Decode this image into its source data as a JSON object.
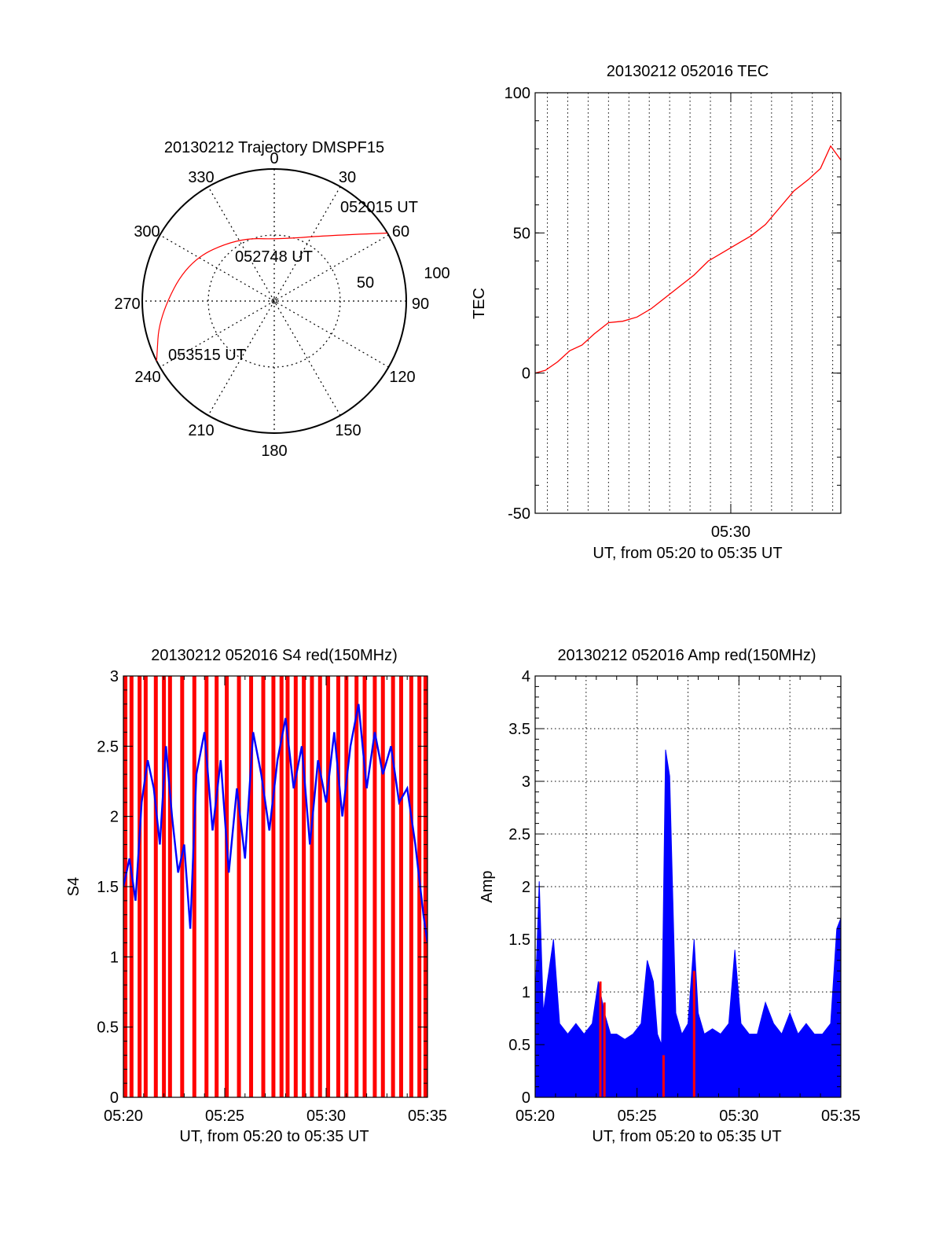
{
  "chart_data": [
    {
      "type": "polar",
      "title": "20130212 Trajectory DMSPF15",
      "angle_labels": [
        "0",
        "30",
        "60",
        "90",
        "120",
        "150",
        "180",
        "210",
        "240",
        "270",
        "300",
        "330"
      ],
      "radius_labels": [
        "50",
        "100"
      ],
      "rlim": [
        0,
        100
      ],
      "grid": true,
      "series": [
        {
          "color": "#ff0000",
          "points": [
            {
              "az": 59,
              "r": 100
            },
            {
              "az": 40,
              "r": 65
            },
            {
              "az": 5,
              "r": 47
            },
            {
              "az": 330,
              "r": 55
            },
            {
              "az": 295,
              "r": 72
            },
            {
              "az": 262,
              "r": 88
            },
            {
              "az": 243,
              "r": 100
            }
          ]
        }
      ],
      "annotations": [
        {
          "text": "052015 UT",
          "az": 59,
          "r": 100
        },
        {
          "text": "052748 UT",
          "az": 5,
          "r": 47
        },
        {
          "text": "053515 UT",
          "az": 243,
          "r": 100
        }
      ]
    },
    {
      "type": "line",
      "title": "20130212 052016 TEC",
      "xlabel": "UT, from 05:20 to 05:35 UT",
      "ylabel": "TEC",
      "xlim": [
        20.4,
        35.4
      ],
      "ylim": [
        -50,
        100
      ],
      "xticks": [
        "05:30"
      ],
      "yticks": [
        "-50",
        "0",
        "50",
        "100"
      ],
      "grid": true,
      "series": [
        {
          "color": "#ff0000",
          "x": [
            20.4,
            20.9,
            21.5,
            22.1,
            22.7,
            23.3,
            24.0,
            24.7,
            25.4,
            26.1,
            26.8,
            27.5,
            28.2,
            28.9,
            29.6,
            30.3,
            31.0,
            31.7,
            32.4,
            33.1,
            33.8,
            34.4,
            34.9,
            35.4
          ],
          "y": [
            0,
            1,
            4,
            8,
            10,
            14,
            18,
            18.5,
            20,
            23,
            27,
            31,
            35,
            40,
            43,
            46,
            49,
            53,
            59,
            65,
            69,
            73,
            81,
            76
          ]
        }
      ]
    },
    {
      "type": "line",
      "title": "20130212 052016 S4 red(150MHz)",
      "xlabel": "UT, from 05:20 to 05:35 UT",
      "ylabel": "S4",
      "xlim": [
        20,
        35
      ],
      "ylim": [
        0,
        3
      ],
      "xticks": [
        "05:20",
        "05:25",
        "05:30",
        "05:35"
      ],
      "yticks": [
        "0",
        "0.5",
        "1",
        "1.5",
        "2",
        "2.5",
        "3"
      ],
      "series": [
        {
          "color": "#0000ff",
          "x": [
            20.0,
            20.3,
            20.6,
            20.9,
            21.2,
            21.5,
            21.8,
            22.1,
            22.4,
            22.7,
            23.0,
            23.3,
            23.6,
            24.0,
            24.4,
            24.8,
            25.2,
            25.6,
            26.0,
            26.4,
            26.8,
            27.2,
            27.6,
            28.0,
            28.4,
            28.8,
            29.2,
            29.6,
            30.0,
            30.4,
            30.8,
            31.2,
            31.6,
            32.0,
            32.4,
            32.8,
            33.2,
            33.6,
            34.0,
            34.4,
            34.8,
            35.0
          ],
          "y": [
            1.5,
            1.7,
            1.4,
            2.1,
            2.4,
            2.2,
            1.8,
            2.5,
            2.0,
            1.6,
            1.8,
            1.2,
            2.3,
            2.6,
            1.9,
            2.4,
            1.6,
            2.2,
            1.7,
            2.6,
            2.3,
            1.9,
            2.4,
            2.7,
            2.2,
            2.5,
            1.8,
            2.4,
            2.1,
            2.6,
            2.0,
            2.5,
            2.8,
            2.2,
            2.6,
            2.3,
            2.5,
            2.1,
            2.2,
            1.8,
            1.3,
            1.1
          ]
        },
        {
          "color": "#ff0000",
          "style": "spikes",
          "x": [
            20.1,
            20.4,
            20.8,
            21.1,
            21.6,
            22.0,
            22.3,
            22.9,
            23.5,
            24.1,
            24.6,
            25.1,
            25.7,
            26.3,
            26.9,
            27.4,
            27.8,
            28.1,
            28.5,
            28.9,
            29.3,
            29.7,
            30.1,
            30.6,
            31.0,
            31.5,
            31.9,
            32.4,
            32.8,
            33.3,
            33.7,
            34.2,
            34.6,
            34.9
          ],
          "y": [
            3,
            3,
            3,
            3,
            3,
            3,
            3,
            3,
            3,
            3,
            3,
            3,
            3,
            3,
            3,
            3,
            3,
            3,
            3,
            3,
            3,
            3,
            3,
            3,
            3,
            3,
            3,
            3,
            3,
            3,
            3,
            3,
            3,
            3
          ]
        }
      ]
    },
    {
      "type": "line",
      "title": "20130212 052016 Amp red(150MHz)",
      "xlabel": "UT, from 05:20 to 05:35 UT",
      "ylabel": "Amp",
      "xlim": [
        20,
        35
      ],
      "ylim": [
        0,
        4
      ],
      "xticks": [
        "05:20",
        "05:25",
        "05:30",
        "05:35"
      ],
      "yticks": [
        "0",
        "0.5",
        "1",
        "1.5",
        "2",
        "2.5",
        "3",
        "3.5",
        "4"
      ],
      "grid": true,
      "series": [
        {
          "color": "#0000ff",
          "x": [
            20.0,
            20.2,
            20.4,
            20.6,
            20.9,
            21.2,
            21.6,
            22.0,
            22.4,
            22.8,
            23.1,
            23.4,
            23.7,
            24.0,
            24.4,
            24.8,
            25.2,
            25.5,
            25.8,
            26.0,
            26.2,
            26.4,
            26.6,
            26.9,
            27.2,
            27.5,
            27.8,
            28.0,
            28.3,
            28.7,
            29.1,
            29.5,
            29.8,
            30.1,
            30.5,
            30.9,
            31.3,
            31.7,
            32.1,
            32.5,
            32.9,
            33.3,
            33.7,
            34.1,
            34.5,
            34.8,
            35.0
          ],
          "y": [
            0.9,
            2.05,
            0.8,
            1.1,
            1.5,
            0.7,
            0.6,
            0.7,
            0.6,
            0.7,
            1.1,
            0.8,
            0.6,
            0.6,
            0.55,
            0.6,
            0.7,
            1.3,
            1.1,
            0.6,
            0.5,
            3.3,
            3.05,
            0.8,
            0.6,
            0.7,
            1.5,
            0.8,
            0.6,
            0.65,
            0.6,
            0.7,
            1.4,
            0.7,
            0.6,
            0.6,
            0.9,
            0.7,
            0.6,
            0.8,
            0.6,
            0.7,
            0.6,
            0.6,
            0.7,
            1.6,
            1.7
          ]
        },
        {
          "color": "#ff0000",
          "style": "spikes",
          "x": [
            23.2,
            23.4,
            26.3,
            27.8
          ],
          "y": [
            1.1,
            0.9,
            0.4,
            1.2
          ]
        }
      ]
    }
  ]
}
